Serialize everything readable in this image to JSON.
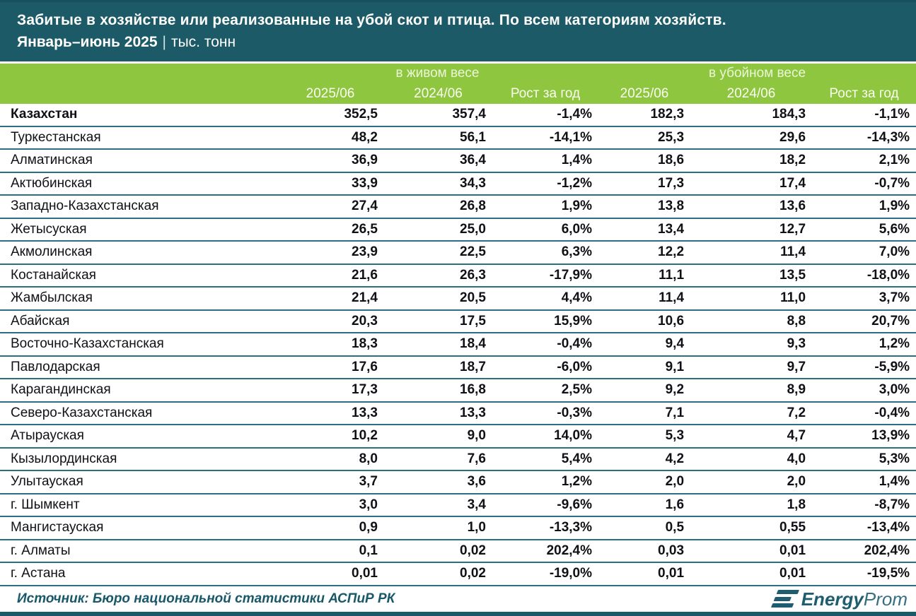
{
  "header": {
    "title": "Забитые в хозяйстве или реализованные на убой скот и птица. По всем категориям хозяйств.",
    "period": "Январь–июнь 2025",
    "pipe": "|",
    "units": "тыс. тонн"
  },
  "chart_data": {
    "type": "table",
    "title": "Забитые в хозяйстве или реализованные на убой скот и птица. По всем категориям хозяйств.",
    "subtitle": "Январь–июнь 2025",
    "units": "тыс. тонн",
    "column_groups": [
      "в живом весе",
      "в убойном весе"
    ],
    "sub_headers": [
      "2025/06",
      "2024/06",
      "Рост за год",
      "2025/06",
      "2024/06",
      "Рост за год"
    ],
    "rows": [
      [
        "Казахстан",
        "352,5",
        "357,4",
        "-1,4%",
        "182,3",
        "184,3",
        "-1,1%"
      ],
      [
        "Туркестанская",
        "48,2",
        "56,1",
        "-14,1%",
        "25,3",
        "29,6",
        "-14,3%"
      ],
      [
        "Алматинская",
        "36,9",
        "36,4",
        "1,4%",
        "18,6",
        "18,2",
        "2,1%"
      ],
      [
        "Актюбинская",
        "33,9",
        "34,3",
        "-1,2%",
        "17,3",
        "17,4",
        "-0,7%"
      ],
      [
        "Западно-Казахстанская",
        "27,4",
        "26,8",
        "1,9%",
        "13,8",
        "13,6",
        "1,9%"
      ],
      [
        "Жетысуская",
        "26,5",
        "25,0",
        "6,0%",
        "13,4",
        "12,7",
        "5,6%"
      ],
      [
        "Акмолинская",
        "23,9",
        "22,5",
        "6,3%",
        "12,2",
        "11,4",
        "7,0%"
      ],
      [
        "Костанайская",
        "21,6",
        "26,3",
        "-17,9%",
        "11,1",
        "13,5",
        "-18,0%"
      ],
      [
        "Жамбылская",
        "21,4",
        "20,5",
        "4,4%",
        "11,4",
        "11,0",
        "3,7%"
      ],
      [
        "Абайская",
        "20,3",
        "17,5",
        "15,9%",
        "10,6",
        "8,8",
        "20,7%"
      ],
      [
        "Восточно-Казахстанская",
        "18,3",
        "18,4",
        "-0,4%",
        "9,4",
        "9,3",
        "1,2%"
      ],
      [
        "Павлодарская",
        "17,6",
        "18,7",
        "-6,0%",
        "9,1",
        "9,7",
        "-5,9%"
      ],
      [
        "Карагандинская",
        "17,3",
        "16,8",
        "2,5%",
        "9,2",
        "8,9",
        "3,0%"
      ],
      [
        "Северо-Казахстанская",
        "13,3",
        "13,3",
        "-0,3%",
        "7,1",
        "7,2",
        "-0,4%"
      ],
      [
        "Атырауская",
        "10,2",
        "9,0",
        "14,0%",
        "5,3",
        "4,7",
        "13,9%"
      ],
      [
        "Кызылординская",
        "8,0",
        "7,6",
        "5,4%",
        "4,2",
        "4,0",
        "5,3%"
      ],
      [
        "Улытауская",
        "3,7",
        "3,6",
        "1,2%",
        "2,0",
        "2,0",
        "1,4%"
      ],
      [
        "г. Шымкент",
        "3,0",
        "3,4",
        "-9,6%",
        "1,6",
        "1,8",
        "-8,7%"
      ],
      [
        "Мангистауская",
        "0,9",
        "1,0",
        "-13,3%",
        "0,5",
        "0,55",
        "-13,4%"
      ],
      [
        "г. Алматы",
        "0,1",
        "0,02",
        "202,4%",
        "0,03",
        "0,01",
        "202,4%"
      ],
      [
        "г. Астана",
        "0,01",
        "0,02",
        "-19,0%",
        "0,01",
        "0,01",
        "-19,5%"
      ]
    ]
  },
  "footer": {
    "source": "Источник: Бюро национальной статистики АСПиР РК",
    "logo_bold": "Energy",
    "logo_light": "Prom"
  },
  "colors": {
    "header_bg": "#1C5A68",
    "band_green": "#8FC640",
    "row_line": "#2A7080",
    "accent_teal": "#1E5D70"
  }
}
